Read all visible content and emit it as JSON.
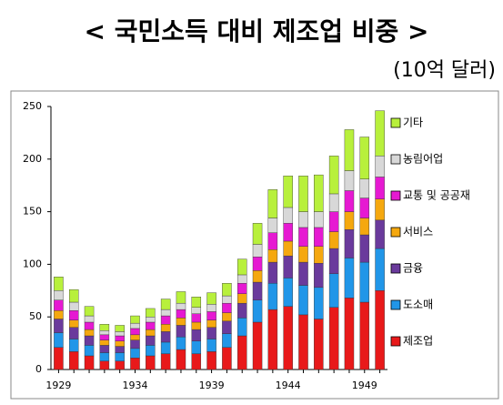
{
  "chart_data": {
    "type": "stacked_bar",
    "title": "< 국민소득 대비 제조업 비중 >",
    "subtitle": "(10억 달러)",
    "categories": [
      "1929",
      null,
      null,
      null,
      null,
      "1934",
      null,
      null,
      null,
      null,
      "1939",
      null,
      null,
      null,
      null,
      "1944",
      null,
      null,
      null,
      null,
      "1949",
      null
    ],
    "series": [
      {
        "name": "제조업",
        "color": "#e8191a",
        "values": [
          21,
          17,
          13,
          8,
          8,
          11,
          13,
          15,
          19,
          15,
          17,
          21,
          32,
          45,
          57,
          60,
          52,
          48,
          59,
          68,
          64,
          75
        ]
      },
      {
        "name": "도소매",
        "color": "#2196e8",
        "values": [
          14,
          12,
          10,
          8,
          8,
          9,
          10,
          11,
          12,
          12,
          12,
          13,
          17,
          21,
          25,
          27,
          28,
          30,
          32,
          38,
          38,
          40
        ]
      },
      {
        "name": "금융",
        "color": "#6a3a9c",
        "values": [
          13,
          11,
          9,
          7,
          6,
          8,
          9,
          10,
          11,
          11,
          11,
          12,
          14,
          17,
          20,
          21,
          22,
          23,
          24,
          27,
          26,
          27
        ]
      },
      {
        "name": "서비스",
        "color": "#f5a80f",
        "values": [
          8,
          7,
          6,
          5,
          5,
          5,
          6,
          7,
          7,
          7,
          7,
          8,
          9,
          11,
          12,
          14,
          15,
          16,
          16,
          17,
          16,
          20
        ]
      },
      {
        "name": "교통 및 공공재",
        "color": "#e619d2",
        "values": [
          10,
          9,
          7,
          5,
          5,
          6,
          7,
          8,
          8,
          8,
          8,
          9,
          10,
          13,
          16,
          17,
          18,
          18,
          19,
          20,
          19,
          21
        ]
      },
      {
        "name": "농림어업",
        "color": "#d8d8d8",
        "values": [
          9,
          8,
          6,
          4,
          4,
          5,
          5,
          6,
          6,
          6,
          7,
          7,
          8,
          12,
          14,
          15,
          15,
          15,
          17,
          19,
          18,
          20
        ]
      },
      {
        "name": "기타",
        "color": "#b8f03c",
        "values": [
          13,
          12,
          9,
          6,
          6,
          7,
          8,
          10,
          11,
          10,
          11,
          12,
          15,
          20,
          27,
          30,
          34,
          35,
          36,
          39,
          40,
          43
        ]
      }
    ],
    "ylim": [
      0,
      250
    ],
    "yticks": [
      0,
      50,
      100,
      150,
      200,
      250
    ]
  }
}
